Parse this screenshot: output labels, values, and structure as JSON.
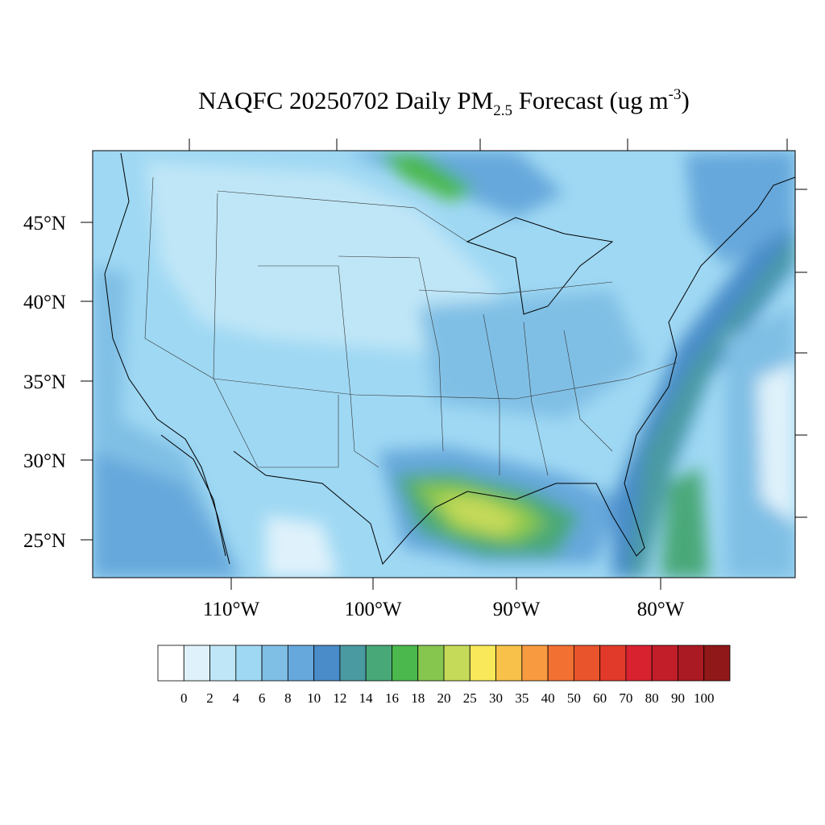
{
  "title": {
    "main": "NAQFC 20250702 Daily PM",
    "sub": "2.5",
    "rest": " Forecast (ug m",
    "sup": "-3",
    "end": ")"
  },
  "map": {
    "lat_labels": [
      "45°N",
      "40°N",
      "35°N",
      "30°N",
      "25°N"
    ],
    "lon_labels": [
      "110°W",
      "100°W",
      "90°W",
      "80°W"
    ]
  },
  "colorbar": {
    "labels": [
      0,
      2,
      4,
      6,
      8,
      10,
      12,
      14,
      16,
      18,
      20,
      25,
      30,
      35,
      40,
      50,
      60,
      70,
      80,
      90,
      100
    ],
    "colors": [
      "#ffffff",
      "#dff2fb",
      "#bfe6f7",
      "#9fd8f3",
      "#80bfe5",
      "#66a8dc",
      "#4a8cc9",
      "#4a9aa2",
      "#48a878",
      "#4ab84c",
      "#86c64e",
      "#c6da5a",
      "#f8e85a",
      "#f8c24a",
      "#f89a40",
      "#f27032",
      "#ea542c",
      "#e23a2a",
      "#d82230",
      "#c21e2a",
      "#aa1a22",
      "#901818"
    ]
  }
}
